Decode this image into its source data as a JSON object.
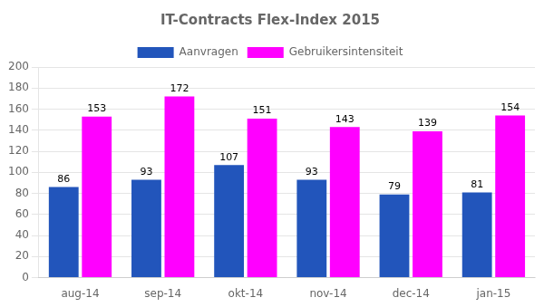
{
  "chart_data": {
    "type": "bar",
    "title": "IT-Contracts Flex-Index 2015",
    "categories": [
      "aug-14",
      "sep-14",
      "okt-14",
      "nov-14",
      "dec-14",
      "jan-15"
    ],
    "series": [
      {
        "name": "Aanvragen",
        "color": "#2255BB",
        "values": [
          86,
          93,
          107,
          93,
          79,
          81
        ]
      },
      {
        "name": "Gebruikersintensiteit",
        "color": "#FF00FF",
        "values": [
          153,
          172,
          151,
          143,
          139,
          154
        ]
      }
    ],
    "ylim": [
      0,
      200
    ],
    "yticks": [
      0,
      20,
      40,
      60,
      80,
      100,
      120,
      140,
      160,
      180,
      200
    ],
    "grid": true,
    "legend": "top",
    "data_labels": true
  }
}
